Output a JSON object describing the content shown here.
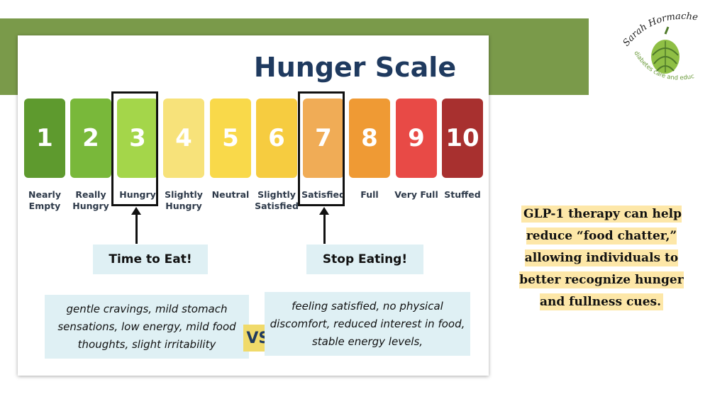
{
  "title": "Hunger Scale",
  "scale": [
    {
      "number": "1",
      "label": "Nearly Empty",
      "color": "#5e9a2e"
    },
    {
      "number": "2",
      "label": "Really Hungry",
      "color": "#79b83a"
    },
    {
      "number": "3",
      "label": "Hungry",
      "color": "#a4d64a"
    },
    {
      "number": "4",
      "label": "Slightly Hungry",
      "color": "#f7e27a"
    },
    {
      "number": "5",
      "label": "Neutral",
      "color": "#f9d94a"
    },
    {
      "number": "6",
      "label": "Slightly Satisfied",
      "color": "#f6cc40"
    },
    {
      "number": "7",
      "label": "Satisfied",
      "color": "#f0ac56"
    },
    {
      "number": "8",
      "label": "Full",
      "color": "#ef9a34"
    },
    {
      "number": "9",
      "label": "Very Full",
      "color": "#e84a46"
    },
    {
      "number": "10",
      "label": "Stuffed",
      "color": "#a8302f"
    }
  ],
  "callouts": {
    "eat": "Time to Eat!",
    "stop": "Stop Eating!"
  },
  "descriptions": {
    "hungry": "gentle cravings, mild stomach sensations, low energy, mild food thoughts, slight irritability",
    "vs": "VS.",
    "satisfied": "feeling satisfied, no physical discomfort, reduced interest in food, stable energy levels,"
  },
  "logo": {
    "name": "Sarah Hormachea",
    "tagline": "diabetes care and education",
    "icon": "artichoke-icon"
  },
  "side_note": "GLP-1 therapy can help reduce “food chatter,” allowing individuals to better recognize hunger and fullness cues.",
  "colors": {
    "band": "#7a9a4a",
    "title": "#1f3a5f",
    "callout_bg": "#dff0f4",
    "vs_bg": "#f0da6a",
    "highlight": "#fde7a8"
  }
}
